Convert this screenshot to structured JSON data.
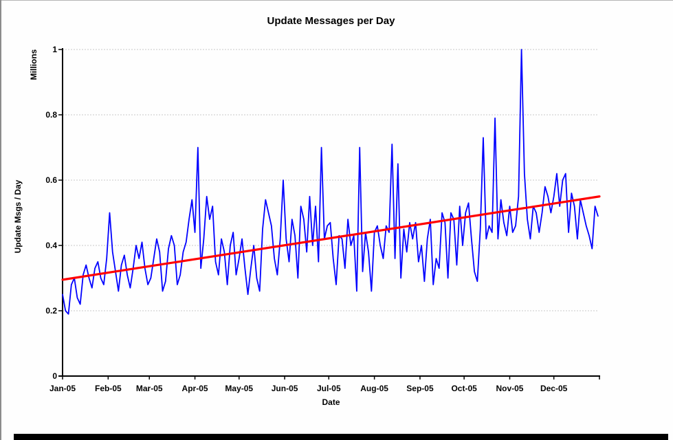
{
  "page": {
    "background_color": "#fefefe",
    "left_border_color": "#8c8c8c",
    "bottom_bar_color": "#000000"
  },
  "chart_data": {
    "type": "line",
    "title": "Update Messages per Day",
    "xlabel": "Date",
    "ylabel": "Update Msgs / Day",
    "ylabel_unit": "Millions",
    "x_tick_labels": [
      "Jan-05",
      "Feb-05",
      "Mar-05",
      "Apr-05",
      "May-05",
      "Jun-05",
      "Jul-05",
      "Aug-05",
      "Sep-05",
      "Oct-05",
      "Nov-05",
      "Dec-05"
    ],
    "month_start_days": [
      0,
      31,
      59,
      90,
      120,
      151,
      181,
      212,
      243,
      273,
      304,
      334
    ],
    "x_range_days": [
      0,
      365
    ],
    "y_ticks": [
      1,
      0.8,
      0.6,
      0.4,
      0.2,
      0
    ],
    "y_tick_labels": [
      "1",
      "0.8",
      "0.6",
      "0.4",
      "0.2",
      "0"
    ],
    "ylim": [
      0,
      1
    ],
    "grid": {
      "horizontal": true,
      "style": "dashed",
      "color": "#c8c8c8"
    },
    "axis_color": "#000000",
    "series": [
      {
        "name": "update-msgs-daily",
        "color": "#0000ff",
        "stroke_width": 1.8,
        "x_step_days": 2,
        "values": [
          0.25,
          0.2,
          0.19,
          0.28,
          0.3,
          0.24,
          0.22,
          0.31,
          0.34,
          0.3,
          0.27,
          0.33,
          0.35,
          0.3,
          0.28,
          0.36,
          0.5,
          0.38,
          0.32,
          0.26,
          0.34,
          0.37,
          0.31,
          0.27,
          0.33,
          0.4,
          0.36,
          0.41,
          0.33,
          0.28,
          0.3,
          0.36,
          0.42,
          0.38,
          0.26,
          0.29,
          0.39,
          0.43,
          0.4,
          0.28,
          0.31,
          0.38,
          0.41,
          0.48,
          0.54,
          0.44,
          0.7,
          0.33,
          0.42,
          0.55,
          0.48,
          0.52,
          0.35,
          0.31,
          0.42,
          0.38,
          0.28,
          0.4,
          0.44,
          0.31,
          0.36,
          0.42,
          0.33,
          0.25,
          0.33,
          0.4,
          0.3,
          0.26,
          0.45,
          0.54,
          0.5,
          0.46,
          0.36,
          0.31,
          0.42,
          0.6,
          0.42,
          0.35,
          0.48,
          0.43,
          0.3,
          0.52,
          0.48,
          0.38,
          0.55,
          0.4,
          0.52,
          0.35,
          0.7,
          0.42,
          0.46,
          0.47,
          0.36,
          0.28,
          0.43,
          0.42,
          0.33,
          0.48,
          0.4,
          0.43,
          0.26,
          0.7,
          0.32,
          0.44,
          0.38,
          0.26,
          0.44,
          0.46,
          0.4,
          0.36,
          0.46,
          0.44,
          0.71,
          0.36,
          0.65,
          0.3,
          0.45,
          0.38,
          0.47,
          0.42,
          0.47,
          0.35,
          0.4,
          0.29,
          0.42,
          0.48,
          0.28,
          0.36,
          0.33,
          0.5,
          0.47,
          0.3,
          0.5,
          0.48,
          0.34,
          0.52,
          0.4,
          0.5,
          0.53,
          0.42,
          0.32,
          0.29,
          0.45,
          0.73,
          0.42,
          0.46,
          0.44,
          0.79,
          0.42,
          0.54,
          0.47,
          0.43,
          0.52,
          0.44,
          0.46,
          0.55,
          1.0,
          0.62,
          0.48,
          0.42,
          0.52,
          0.5,
          0.44,
          0.5,
          0.58,
          0.55,
          0.5,
          0.55,
          0.62,
          0.52,
          0.6,
          0.62,
          0.44,
          0.56,
          0.52,
          0.42,
          0.54,
          0.5,
          0.46,
          0.43,
          0.39,
          0.52,
          0.49
        ]
      },
      {
        "name": "linear-trend",
        "color": "#ff0000",
        "stroke_width": 3.2,
        "x_days": [
          0,
          365
        ],
        "values": [
          0.295,
          0.55
        ]
      }
    ]
  }
}
